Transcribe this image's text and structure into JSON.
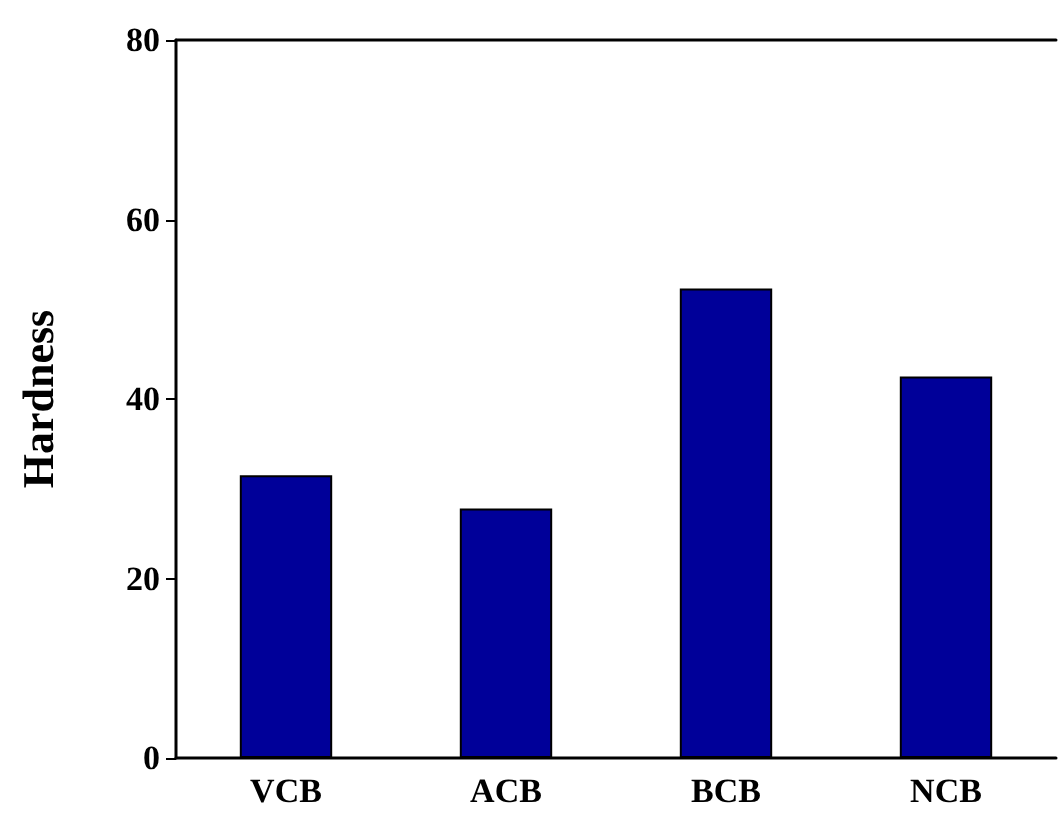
{
  "chart_data": {
    "type": "bar",
    "ylabel": "Hardness",
    "categories": [
      "VCB",
      "ACB",
      "BCB",
      "NCB"
    ],
    "values": [
      31.5,
      27.8,
      52.3,
      42.5
    ],
    "color": "#000099",
    "ylim": [
      0,
      80
    ],
    "yticks": [
      0,
      20,
      40,
      60,
      80
    ],
    "grid": false
  }
}
